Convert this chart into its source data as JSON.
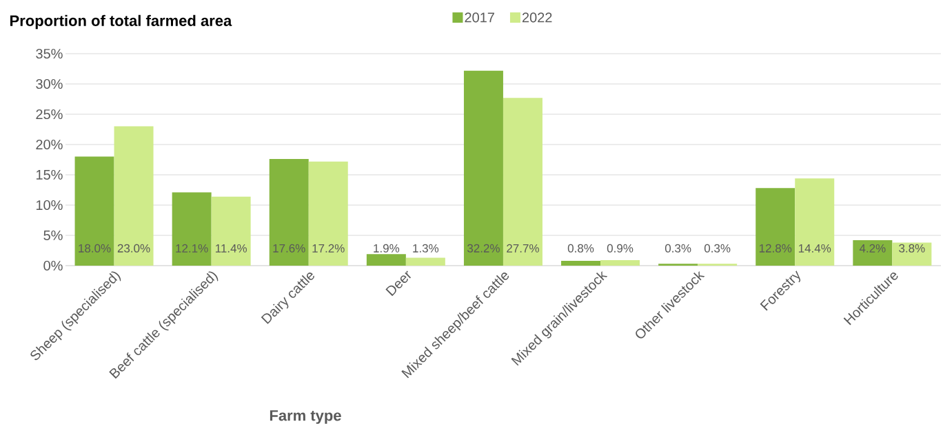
{
  "chart_data": {
    "type": "bar",
    "title": "Proportion of total farmed area",
    "xlabel": "Farm type",
    "categories": [
      "Sheep (specialised)",
      "Beef cattle (specialised)",
      "Dairy cattle",
      "Deer",
      "Mixed sheep/beef cattle",
      "Mixed grain/livestock",
      "Other livestock",
      "Forestry",
      "Horticulture"
    ],
    "series": [
      {
        "name": "2017",
        "color": "#84b63e",
        "values": [
          18.0,
          12.1,
          17.6,
          1.9,
          32.2,
          0.8,
          0.3,
          12.8,
          4.2
        ],
        "value_labels": [
          "18.0%",
          "12.1%",
          "17.6%",
          "1.9%",
          "32.2%",
          "0.8%",
          "0.3%",
          "12.8%",
          "4.2%"
        ]
      },
      {
        "name": "2022",
        "color": "#cfeb8a",
        "values": [
          23.0,
          11.4,
          17.2,
          1.3,
          27.7,
          0.9,
          0.3,
          14.4,
          3.8
        ],
        "value_labels": [
          "23.0%",
          "11.4%",
          "17.2%",
          "1.3%",
          "27.7%",
          "0.9%",
          "0.3%",
          "14.4%",
          "3.8%"
        ]
      }
    ],
    "ylim": [
      0,
      35
    ],
    "yticks": [
      {
        "value": 0,
        "label": "0%"
      },
      {
        "value": 5,
        "label": "5%"
      },
      {
        "value": 10,
        "label": "10%"
      },
      {
        "value": 15,
        "label": "15%"
      },
      {
        "value": 20,
        "label": "20%"
      },
      {
        "value": 25,
        "label": "25%"
      },
      {
        "value": 30,
        "label": "30%"
      },
      {
        "value": 35,
        "label": "35%"
      }
    ],
    "grid": "y",
    "legend": "top"
  }
}
